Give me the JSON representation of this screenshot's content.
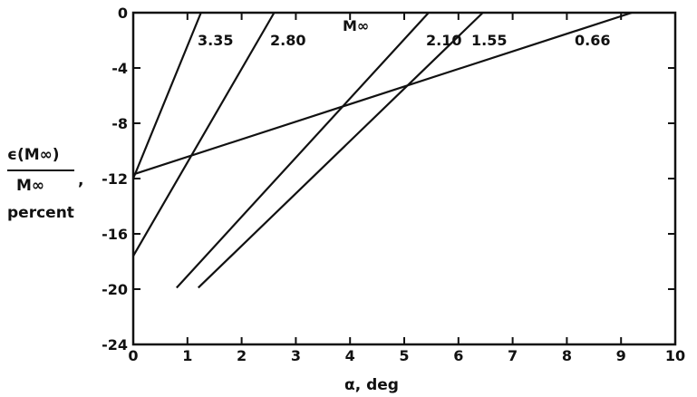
{
  "chart_data": {
    "type": "line",
    "xlabel": "α, deg",
    "ylabel": {
      "numerator": "ϵ(M∞)",
      "denominator": "M∞",
      "suffix": ",",
      "unit": "percent"
    },
    "legend_title": "M∞",
    "xlim": [
      0,
      10
    ],
    "ylim": [
      -24,
      0
    ],
    "x_ticks": [
      "0",
      "1",
      "2",
      "3",
      "4",
      "5",
      "6",
      "7",
      "8",
      "9",
      "10"
    ],
    "y_ticks": [
      "0",
      "-4",
      "-8",
      "-12",
      "-16",
      "-20",
      "-24"
    ],
    "grid": false,
    "series": [
      {
        "name": "3.35",
        "x": [
          0,
          1.25
        ],
        "y": [
          -12.0,
          0
        ]
      },
      {
        "name": "2.80",
        "x": [
          0,
          2.6
        ],
        "y": [
          -17.6,
          0
        ]
      },
      {
        "name": "2.10",
        "x": [
          0.8,
          5.45
        ],
        "y": [
          -19.9,
          0
        ]
      },
      {
        "name": "1.55",
        "x": [
          1.2,
          6.45
        ],
        "y": [
          -19.9,
          0
        ]
      },
      {
        "name": "0.66",
        "x": [
          0,
          9.2
        ],
        "y": [
          -11.7,
          0
        ]
      }
    ]
  }
}
